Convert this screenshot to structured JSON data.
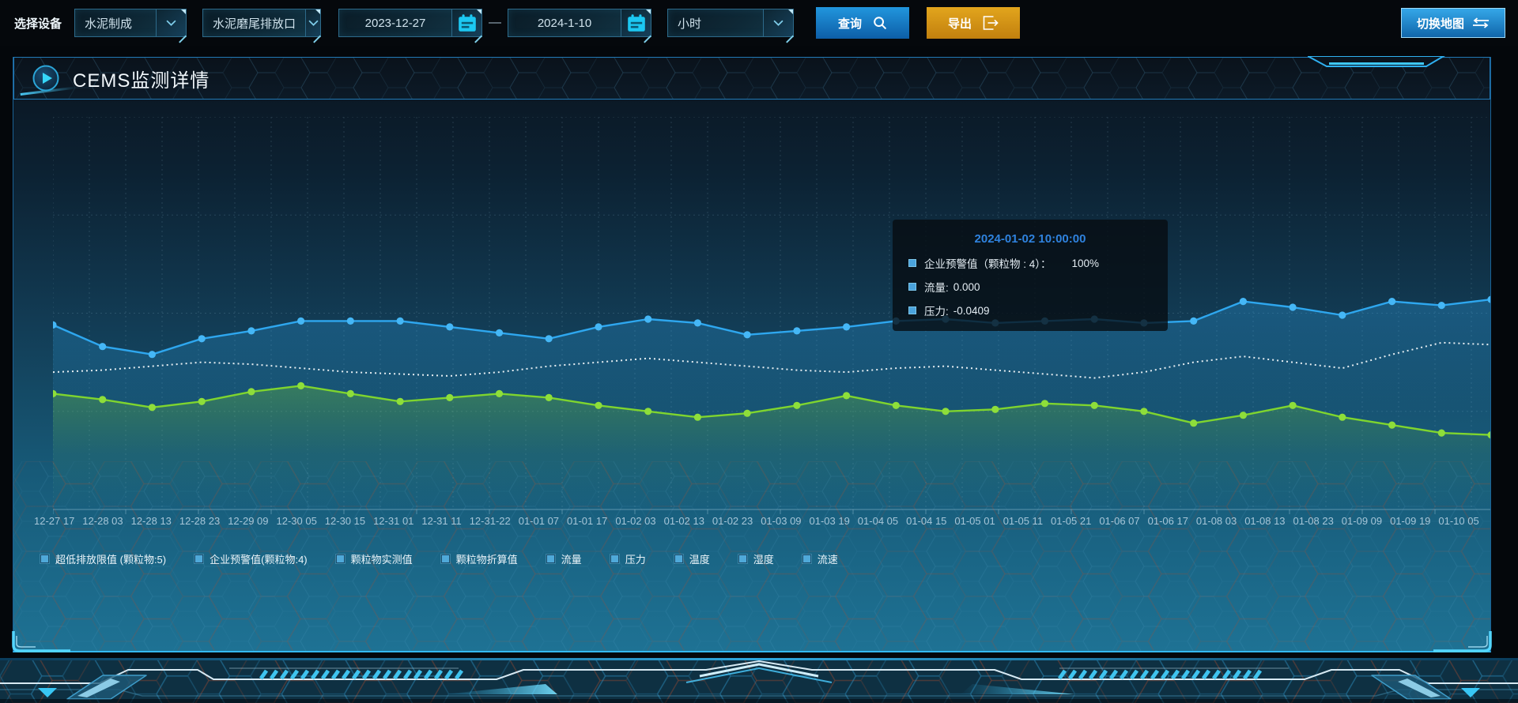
{
  "toolbar": {
    "device_label": "选择设备",
    "select_line": "水泥制成",
    "select_outlet": "水泥磨尾排放口",
    "date_start": "2023-12-27",
    "date_separator": "—",
    "date_end": "2024-1-10",
    "select_interval": "小时",
    "query_label": "查询",
    "export_label": "导出",
    "switch_map_label": "切换地图"
  },
  "panel": {
    "title": "CEMS监测详情"
  },
  "tooltip": {
    "title": "2024-01-02 10:00:00",
    "rows": [
      {
        "label": "企业预警值（颗粒物 : 4）：",
        "value": "100%"
      },
      {
        "label": "流量:",
        "value": "0.000"
      },
      {
        "label": "压力:",
        "value": "-0.0409"
      }
    ]
  },
  "legend": {
    "marker_color": "#4fa9d9",
    "items": [
      "超低排放限值 (颗粒物:5)",
      "企业预警值(颗粒物:4)",
      "颗粒物实测值",
      "颗粒物折算值",
      "流量",
      "压力",
      "温度",
      "湿度",
      "流速"
    ]
  },
  "chart_data": {
    "type": "line",
    "title": "CEMS监测详情",
    "xlabel": "",
    "ylabel": "",
    "ylim": [
      0,
      100
    ],
    "grid": "dashed",
    "legend_position": "bottom",
    "categories": [
      "12-27 17",
      "12-28 03",
      "12-28 13",
      "12-28 23",
      "12-29 09",
      "12-30 05",
      "12-30 15",
      "12-31 01",
      "12-31 11",
      "12-31-22",
      "01-01 07",
      "01-01 17",
      "01-02 03",
      "01-02 13",
      "01-02 23",
      "01-03 09",
      "01-03 19",
      "01-04 05",
      "01-04 15",
      "01-05 01",
      "01-05 11",
      "01-05 21",
      "01-06 07",
      "01-06 17",
      "01-08 03",
      "01-08 13",
      "01-08 23",
      "01-09 09",
      "01-09 19",
      "01-10 05"
    ],
    "series": [
      {
        "name": "企业预警值(颗粒物:4)",
        "color": "#2ea7ef",
        "marker_color": "#45b7f6",
        "style": "solid",
        "markers": true,
        "area": true,
        "values": [
          47.0,
          41.5,
          39.5,
          43.5,
          45.5,
          48.0,
          48.0,
          48.0,
          46.5,
          45.0,
          43.5,
          46.5,
          48.5,
          47.5,
          44.5,
          45.5,
          46.5,
          48.0,
          48.5,
          47.5,
          48.0,
          48.5,
          47.5,
          48.0,
          53.0,
          51.5,
          49.5,
          53.0,
          52.0,
          53.5
        ]
      },
      {
        "name": "流量",
        "color": "#e6eef2",
        "marker_color": "#e6eef2",
        "style": "dotted",
        "markers": false,
        "area": false,
        "values": [
          35.0,
          35.5,
          36.5,
          37.5,
          37.0,
          36.0,
          35.0,
          34.5,
          34.0,
          35.0,
          36.5,
          37.5,
          38.5,
          37.5,
          36.5,
          35.5,
          35.0,
          36.0,
          36.5,
          35.5,
          34.5,
          33.5,
          35.0,
          37.5,
          39.0,
          37.5,
          36.0,
          39.5,
          42.5,
          42.0
        ]
      },
      {
        "name": "压力",
        "color": "#7fd52e",
        "marker_color": "#8ede3a",
        "style": "solid",
        "markers": true,
        "area": true,
        "values": [
          29.5,
          28.0,
          26.0,
          27.5,
          30.0,
          31.5,
          29.5,
          27.5,
          28.5,
          29.5,
          28.5,
          26.5,
          25.0,
          23.5,
          24.5,
          26.5,
          29.0,
          26.5,
          25.0,
          25.5,
          27.0,
          26.5,
          25.0,
          22.0,
          24.0,
          26.5,
          23.5,
          21.5,
          19.5,
          19.0
        ]
      }
    ]
  },
  "colors": {
    "accent": "#2fb4f0",
    "query_button": "#1787d2",
    "export_button": "#d79a18",
    "panel_border": "#1a6296",
    "background": "#04070b"
  }
}
